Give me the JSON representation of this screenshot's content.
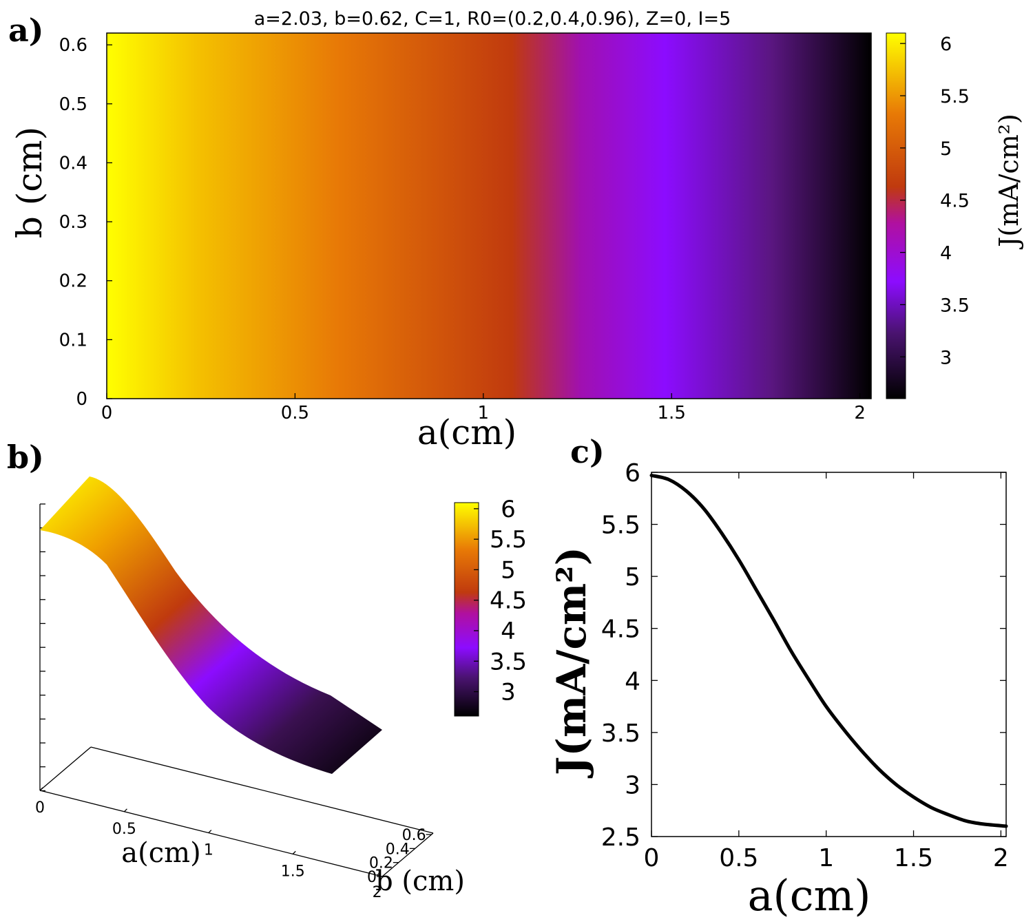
{
  "panels": {
    "a": {
      "label": "a)",
      "title": "a=2.03, b=0.62, C=1, R0=(0.2,0.4,0.96), Z=0, I=5",
      "xlabel": "a(cm)",
      "ylabel": "b (cm)",
      "colorbar_label": "J(mA/cm²)",
      "xticks": [
        "0",
        "0.5",
        "1",
        "1.5",
        "2"
      ],
      "yticks": [
        "0",
        "0.1",
        "0.2",
        "0.3",
        "0.4",
        "0.5",
        "0.6"
      ],
      "cbticks": [
        "3",
        "3.5",
        "4",
        "4.5",
        "5",
        "5.5",
        "6"
      ]
    },
    "b": {
      "label": "b)",
      "xlabel": "a(cm)",
      "ylabel": "b (cm)",
      "xticks": [
        "0",
        "0.5",
        "1",
        "1.5",
        "2"
      ],
      "yticks": [
        "0",
        "0.2",
        "0.4",
        "0.6"
      ],
      "cbticks": [
        "3",
        "3.5",
        "4",
        "4.5",
        "5",
        "5.5",
        "6"
      ]
    },
    "c": {
      "label": "c)",
      "xlabel": "a(cm)",
      "ylabel": "J(mA/cm²)",
      "xticks": [
        "0",
        "0.5",
        "1",
        "1.5",
        "2"
      ],
      "yticks": [
        "2.5",
        "3",
        "3.5",
        "4",
        "4.5",
        "5",
        "5.5",
        "6"
      ]
    }
  },
  "chart_data": [
    {
      "type": "heatmap",
      "x_range": [
        0,
        2.03
      ],
      "y_range": [
        0,
        0.62
      ],
      "color_range": [
        2.6,
        6.1
      ],
      "colormap": [
        "#000000",
        "#5a1680",
        "#8c0cff",
        "#b010a0",
        "#c03a0e",
        "#e87a06",
        "#ffff00"
      ],
      "J_profile": {
        "a": [
          0,
          0.2,
          0.4,
          0.6,
          0.8,
          1.0,
          1.2,
          1.4,
          1.6,
          1.8,
          2.03
        ],
        "J": [
          5.97,
          5.82,
          5.42,
          4.87,
          4.28,
          3.75,
          3.33,
          3.0,
          2.78,
          2.65,
          2.6
        ]
      }
    },
    {
      "type": "surface",
      "x_range": [
        0,
        2.03
      ],
      "y_range": [
        0,
        0.62
      ],
      "z_range": [
        2.6,
        6.1
      ],
      "J_profile": {
        "a": [
          0,
          0.2,
          0.4,
          0.6,
          0.8,
          1.0,
          1.2,
          1.4,
          1.6,
          1.8,
          2.03
        ],
        "J": [
          5.97,
          5.82,
          5.42,
          4.87,
          4.28,
          3.75,
          3.33,
          3.0,
          2.78,
          2.65,
          2.6
        ]
      }
    },
    {
      "type": "line",
      "x": [
        0,
        0.1,
        0.2,
        0.3,
        0.4,
        0.5,
        0.6,
        0.7,
        0.8,
        0.9,
        1.0,
        1.1,
        1.2,
        1.3,
        1.4,
        1.5,
        1.6,
        1.7,
        1.8,
        1.9,
        2.03
      ],
      "y": [
        5.97,
        5.93,
        5.82,
        5.65,
        5.42,
        5.16,
        4.87,
        4.58,
        4.28,
        4.01,
        3.75,
        3.53,
        3.33,
        3.15,
        3.0,
        2.88,
        2.78,
        2.71,
        2.65,
        2.62,
        2.6
      ],
      "xlim": [
        0,
        2.03
      ],
      "ylim": [
        2.5,
        6.0
      ]
    }
  ]
}
